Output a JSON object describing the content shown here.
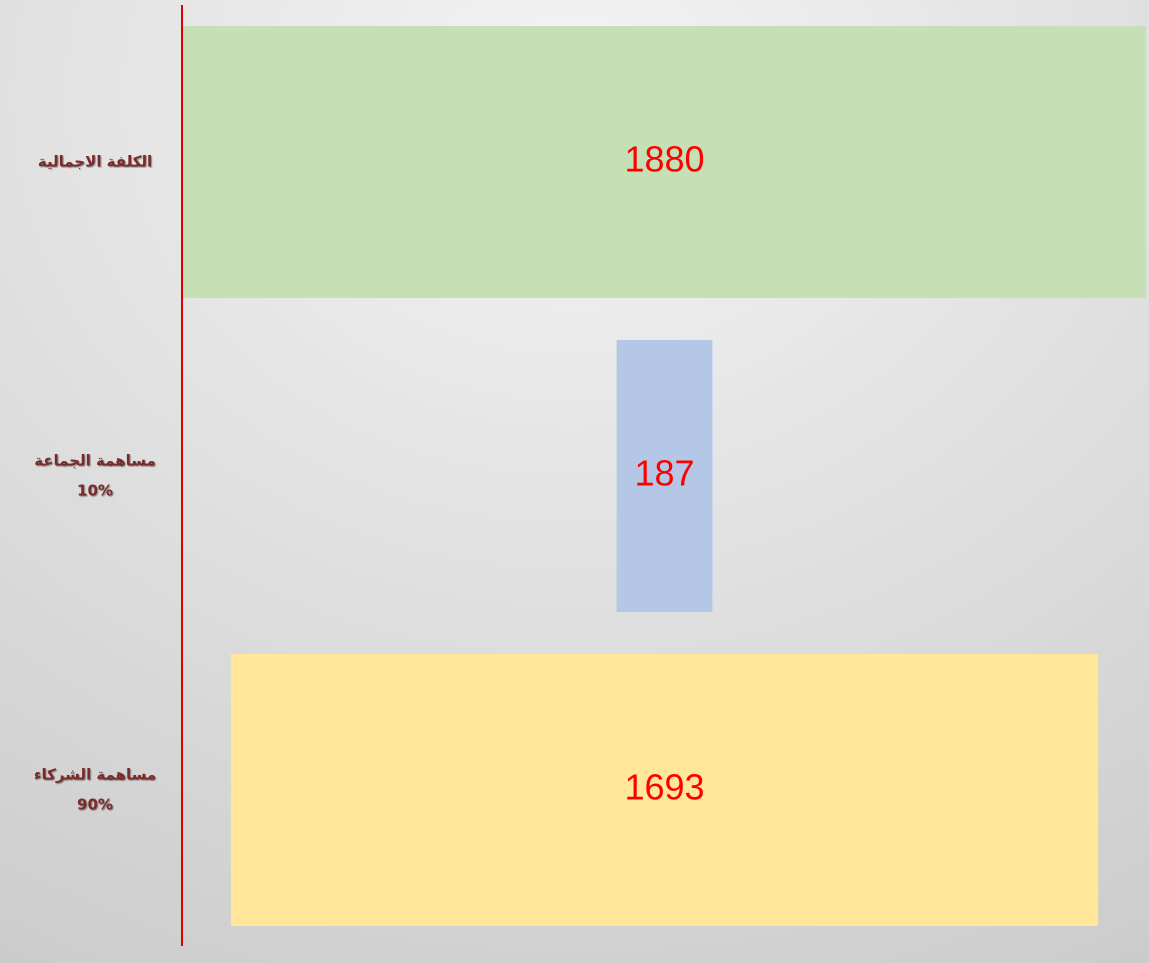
{
  "chart_data": {
    "type": "funnel",
    "categories": [
      [
        "الكلفة الاجمالية"
      ],
      [
        "مساهمة الجماعة",
        "10%"
      ],
      [
        "مساهمة الشركاء",
        "90%"
      ]
    ],
    "values": [
      1880,
      187,
      1693
    ],
    "colors": [
      "#c5e0b4",
      "#b4c7e7",
      "#ffe699"
    ],
    "value_label_color": "#ff0000"
  }
}
